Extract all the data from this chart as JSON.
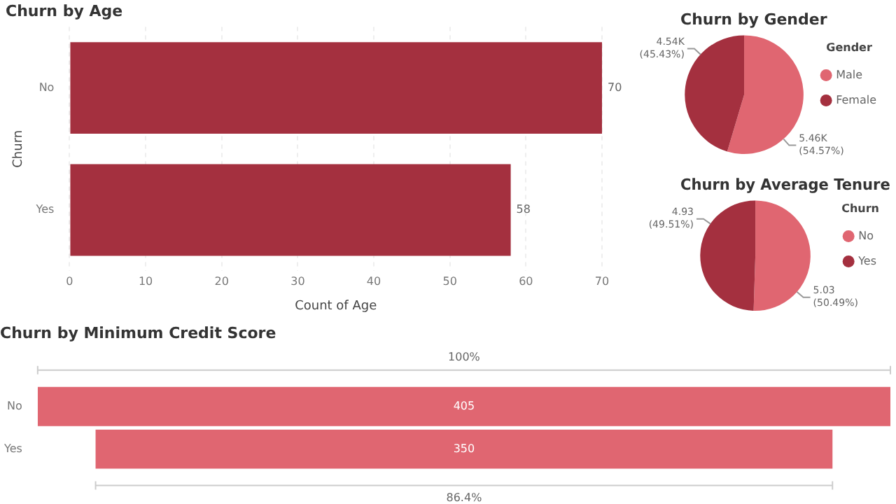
{
  "chart_data": [
    {
      "type": "bar",
      "title": "Churn by Age",
      "orientation": "horizontal",
      "xlabel": "Count of Age",
      "ylabel": "Churn",
      "categories": [
        "No",
        "Yes"
      ],
      "values": [
        70,
        58
      ],
      "color": "#a4303f",
      "xlim": [
        0,
        70
      ],
      "xticks": [
        0,
        10,
        20,
        30,
        40,
        50,
        60,
        70
      ],
      "grid": "x",
      "data_labels": true
    },
    {
      "type": "pie",
      "title": "Churn by Gender",
      "legend_title": "Gender",
      "legend": "right",
      "categories": [
        "Male",
        "Female"
      ],
      "values": [
        5460,
        4540
      ],
      "colors": [
        "#e06671",
        "#a4303f"
      ],
      "value_labels": [
        "5.46K (54.57%)",
        "4.54K (45.43%)"
      ]
    },
    {
      "type": "pie",
      "title": "Churn by Average Tenure",
      "legend_title": "Churn",
      "legend": "right",
      "categories": [
        "No",
        "Yes"
      ],
      "values": [
        5.03,
        4.93
      ],
      "colors": [
        "#e06671",
        "#a4303f"
      ],
      "value_labels": [
        "5.03 (50.49%)",
        "4.93 (49.51%)"
      ]
    },
    {
      "type": "other",
      "title": "Churn by Minimum Credit Score",
      "categories": [
        "No",
        "Yes"
      ],
      "values": [
        405,
        350
      ],
      "color": "#e06671",
      "data_labels": true,
      "annotations": [
        "100%",
        "86.4%"
      ]
    }
  ]
}
